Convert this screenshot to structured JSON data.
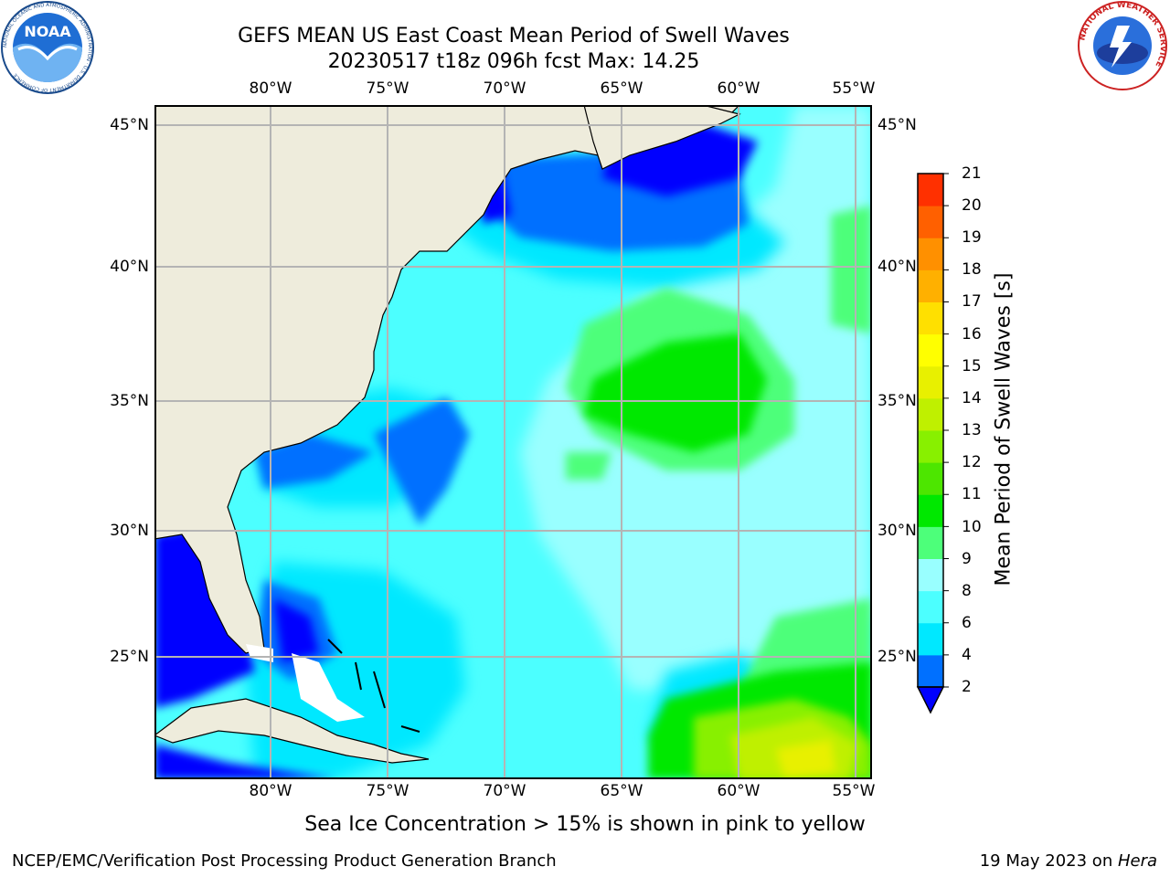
{
  "header": {
    "title_line1": "GEFS MEAN US East Coast Mean Period of Swell Waves",
    "title_line2": "20230517 t18z 096h fcst   Max: 14.25"
  },
  "map": {
    "lon_labels": [
      "80°W",
      "75°W",
      "70°W",
      "65°W",
      "60°W",
      "55°W"
    ],
    "lat_labels": [
      "45°N",
      "40°N",
      "35°N",
      "30°N",
      "25°N"
    ],
    "projection": "cylindrical",
    "extent": {
      "lon": [
        -85,
        -54
      ],
      "lat": [
        20.5,
        46
      ]
    },
    "grid": true,
    "land_color": "#eeecdc",
    "grid_color": "#b4b4b4"
  },
  "colorbar": {
    "label": "Mean Period of Swell Waves [s]",
    "ticks": [
      "2",
      "4",
      "6",
      "8",
      "9",
      "10",
      "11",
      "12",
      "13",
      "14",
      "15",
      "16",
      "17",
      "18",
      "19",
      "20",
      "21"
    ],
    "colors": [
      "#0070ff",
      "#00e8ff",
      "#4cffff",
      "#99ffff",
      "#4dff7a",
      "#00e800",
      "#4de600",
      "#88f000",
      "#bff000",
      "#e8f000",
      "#ffff00",
      "#ffe000",
      "#ffb000",
      "#ff9000",
      "#ff6000",
      "#ff3000"
    ],
    "under_color": "#0000ff",
    "orientation": "vertical",
    "extend": "min"
  },
  "footnote": "Sea Ice Concentration > 15% is shown in pink to yellow",
  "credits": {
    "left": "NCEP/EMC/Verification Post Processing Product Generation Branch",
    "right_prefix": "19 May 2023 on ",
    "right_host": "Hera"
  },
  "logos": {
    "noaa_text": "NOAA",
    "noaa_ring": "NATIONAL OCEANIC AND ATMOSPHERIC ADMINISTRATION · U.S. DEPARTMENT OF COMMERCE",
    "nws_ring": "NATIONAL WEATHER SERVICE"
  }
}
